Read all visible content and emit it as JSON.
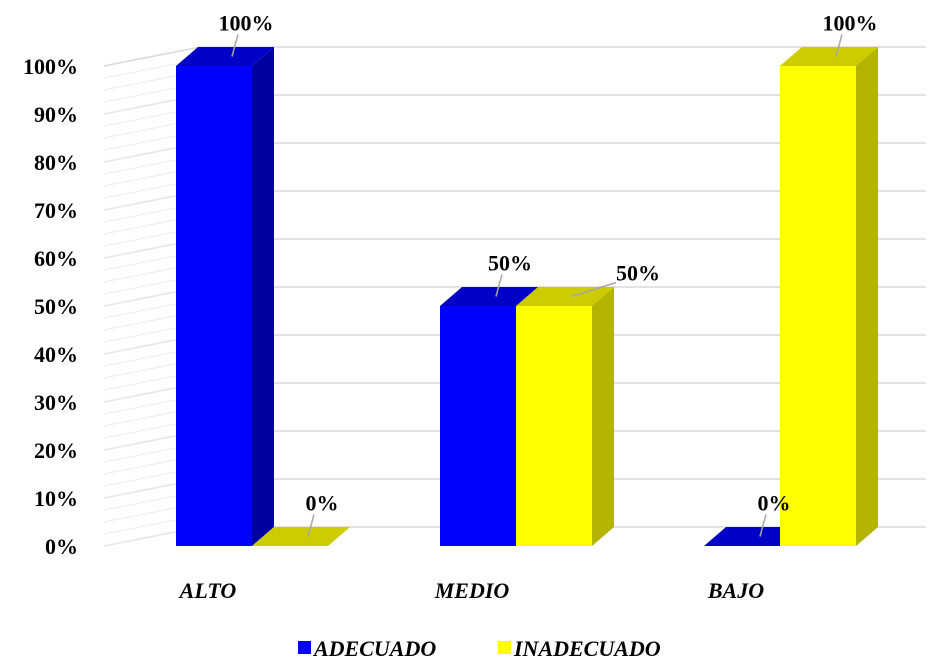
{
  "chart_data": {
    "type": "bar",
    "categories": [
      "ALTO",
      "MEDIO",
      "BAJO"
    ],
    "series": [
      {
        "name": "ADECUADO",
        "values": [
          100,
          50,
          0
        ],
        "color": "#0000FF",
        "side_color": "#00009F",
        "top_color": "#0000C8"
      },
      {
        "name": "INADECUADO",
        "values": [
          0,
          50,
          100
        ],
        "color": "#FFFF00",
        "side_color": "#B3B300",
        "top_color": "#CCCC00"
      }
    ],
    "data_labels": [
      [
        "100%",
        "50%",
        "0%"
      ],
      [
        "0%",
        "50%",
        "100%"
      ]
    ],
    "yticks": [
      "0%",
      "10%",
      "20%",
      "30%",
      "40%",
      "50%",
      "60%",
      "70%",
      "80%",
      "90%",
      "100%"
    ],
    "ylim": [
      0,
      100
    ],
    "grid": true,
    "legend_position": "bottom",
    "title": "",
    "xlabel": "",
    "ylabel": ""
  }
}
